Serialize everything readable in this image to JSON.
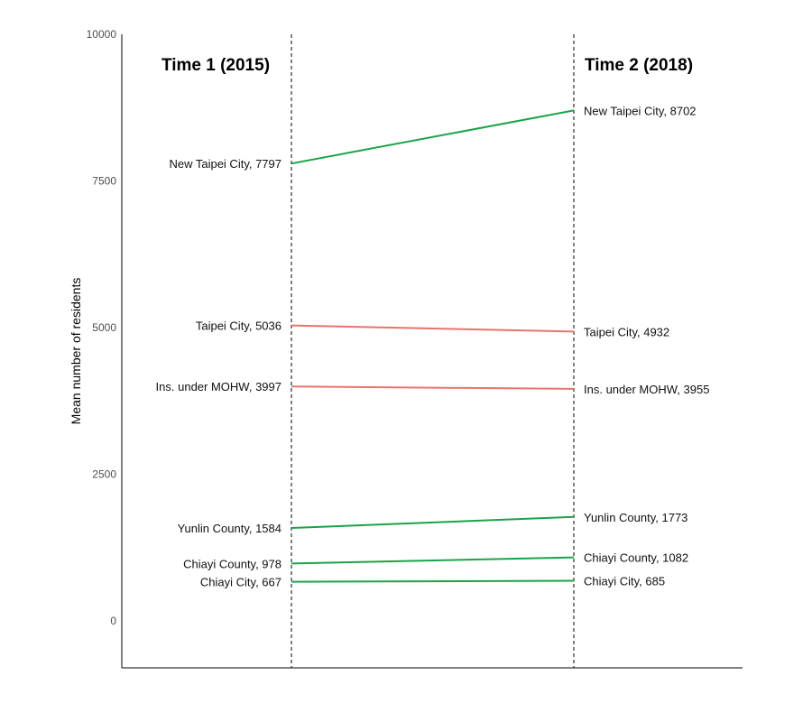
{
  "chart_data": {
    "type": "line",
    "subtype": "slopegraph",
    "ylabel": "Mean number of residents",
    "ylim": [
      -800,
      10000
    ],
    "yticks": [
      0,
      2500,
      5000,
      7500,
      10000
    ],
    "y_tick_labels": [
      "0",
      "2500",
      "5000",
      "7500",
      "10000"
    ],
    "headers": [
      "Time 1 (2015)",
      "Time 2 (2018)"
    ],
    "grid": false,
    "colors": {
      "increase": "#1aa348",
      "decrease": "#e8736c",
      "axis": "#000000"
    },
    "series": [
      {
        "name": "New Taipei City",
        "values": [
          7797,
          8702
        ],
        "direction": "increase",
        "label_left": "New Taipei City, 7797",
        "label_right": "New Taipei City, 8702"
      },
      {
        "name": "Taipei City",
        "values": [
          5036,
          4932
        ],
        "direction": "decrease",
        "label_left": "Taipei City, 5036",
        "label_right": "Taipei City, 4932"
      },
      {
        "name": "Ins. under MOHW",
        "values": [
          3997,
          3955
        ],
        "direction": "decrease",
        "label_left": "Ins. under MOHW, 3997",
        "label_right": "Ins. under MOHW, 3955"
      },
      {
        "name": "Yunlin County",
        "values": [
          1584,
          1773
        ],
        "direction": "increase",
        "label_left": "Yunlin County, 1584",
        "label_right": "Yunlin County, 1773"
      },
      {
        "name": "Chiayi County",
        "values": [
          978,
          1082
        ],
        "direction": "increase",
        "label_left": "Chiayi County, 978",
        "label_right": "Chiayi County, 1082"
      },
      {
        "name": "Chiayi City",
        "values": [
          667,
          685
        ],
        "direction": "increase",
        "label_left": "Chiayi City, 667",
        "label_right": "Chiayi City, 685"
      }
    ]
  }
}
